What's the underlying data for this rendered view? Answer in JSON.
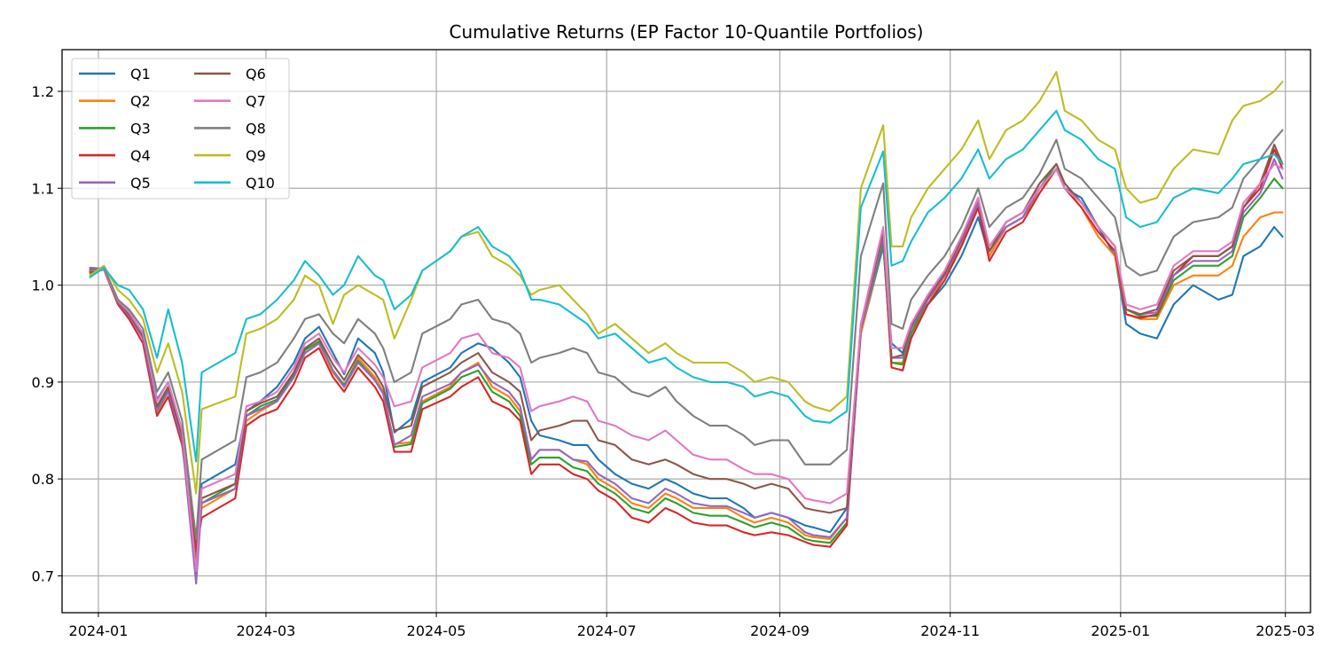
{
  "chart_data": {
    "type": "line",
    "title": "Cumulative Returns (EP Factor 10-Quantile Portfolios)",
    "xlabel": "",
    "ylabel": "",
    "xlim": [
      "2023-12-19",
      "2025-03-10"
    ],
    "ylim": [
      0.662,
      1.243
    ],
    "x_ticks": [
      "2024-01-01",
      "2024-03-01",
      "2024-05-01",
      "2024-07-01",
      "2024-09-01",
      "2024-11-01",
      "2025-01-01",
      "2025-03-01"
    ],
    "x_tick_labels": [
      "2024-01",
      "2024-03",
      "2024-05",
      "2024-07",
      "2024-09",
      "2024-11",
      "2025-01",
      "2025-03"
    ],
    "y_ticks": [
      0.7,
      0.8,
      0.9,
      1.0,
      1.1,
      1.2
    ],
    "y_tick_labels": [
      "0.7",
      "0.8",
      "0.9",
      "1.0",
      "1.1",
      "1.2"
    ],
    "grid": true,
    "legend": {
      "placement": "top-left",
      "columns": 2
    },
    "x": [
      "2023-12-29",
      "2024-01-03",
      "2024-01-08",
      "2024-01-12",
      "2024-01-17",
      "2024-01-22",
      "2024-01-26",
      "2024-01-31",
      "2024-02-05",
      "2024-02-07",
      "2024-02-19",
      "2024-02-23",
      "2024-02-28",
      "2024-03-05",
      "2024-03-11",
      "2024-03-15",
      "2024-03-20",
      "2024-03-25",
      "2024-03-29",
      "2024-04-03",
      "2024-04-09",
      "2024-04-12",
      "2024-04-16",
      "2024-04-22",
      "2024-04-26",
      "2024-05-06",
      "2024-05-10",
      "2024-05-16",
      "2024-05-21",
      "2024-05-27",
      "2024-05-31",
      "2024-06-04",
      "2024-06-07",
      "2024-06-14",
      "2024-06-19",
      "2024-06-24",
      "2024-06-28",
      "2024-07-04",
      "2024-07-10",
      "2024-07-16",
      "2024-07-22",
      "2024-07-26",
      "2024-08-01",
      "2024-08-07",
      "2024-08-13",
      "2024-08-19",
      "2024-08-23",
      "2024-08-29",
      "2024-09-04",
      "2024-09-10",
      "2024-09-13",
      "2024-09-19",
      "2024-09-25",
      "2024-09-30",
      "2024-10-08",
      "2024-10-11",
      "2024-10-15",
      "2024-10-18",
      "2024-10-24",
      "2024-10-30",
      "2024-11-05",
      "2024-11-11",
      "2024-11-15",
      "2024-11-21",
      "2024-11-27",
      "2024-12-03",
      "2024-12-09",
      "2024-12-12",
      "2024-12-18",
      "2024-12-24",
      "2024-12-30",
      "2025-01-03",
      "2025-01-08",
      "2025-01-14",
      "2025-01-20",
      "2025-01-27",
      "2025-02-05",
      "2025-02-10",
      "2025-02-14",
      "2025-02-20",
      "2025-02-25",
      "2025-02-28"
    ],
    "series": [
      {
        "name": "Q1",
        "color": "#1f77b4",
        "values": [
          1.015,
          1.018,
          0.985,
          0.972,
          0.95,
          0.882,
          0.9,
          0.85,
          0.73,
          0.795,
          0.815,
          0.87,
          0.88,
          0.895,
          0.92,
          0.945,
          0.957,
          0.93,
          0.908,
          0.945,
          0.93,
          0.91,
          0.848,
          0.862,
          0.9,
          0.915,
          0.93,
          0.94,
          0.935,
          0.92,
          0.905,
          0.86,
          0.845,
          0.84,
          0.835,
          0.835,
          0.82,
          0.805,
          0.795,
          0.79,
          0.8,
          0.795,
          0.785,
          0.78,
          0.78,
          0.77,
          0.76,
          0.765,
          0.76,
          0.752,
          0.75,
          0.745,
          0.77,
          0.95,
          1.04,
          0.94,
          0.93,
          0.96,
          0.98,
          1.0,
          1.03,
          1.07,
          1.03,
          1.06,
          1.07,
          1.1,
          1.12,
          1.1,
          1.09,
          1.06,
          1.03,
          0.96,
          0.95,
          0.945,
          0.98,
          1.0,
          0.985,
          0.99,
          1.03,
          1.04,
          1.06,
          1.05
        ]
      },
      {
        "name": "Q2",
        "color": "#ff7f0e",
        "values": [
          1.012,
          1.016,
          0.982,
          0.968,
          0.945,
          0.868,
          0.89,
          0.84,
          0.725,
          0.77,
          0.79,
          0.86,
          0.87,
          0.88,
          0.905,
          0.93,
          0.94,
          0.91,
          0.895,
          0.925,
          0.905,
          0.89,
          0.836,
          0.838,
          0.88,
          0.895,
          0.91,
          0.92,
          0.895,
          0.885,
          0.87,
          0.82,
          0.83,
          0.83,
          0.82,
          0.815,
          0.8,
          0.79,
          0.775,
          0.77,
          0.785,
          0.78,
          0.77,
          0.77,
          0.77,
          0.76,
          0.755,
          0.76,
          0.755,
          0.742,
          0.74,
          0.738,
          0.76,
          0.95,
          1.045,
          0.92,
          0.92,
          0.95,
          0.98,
          1.01,
          1.04,
          1.08,
          1.03,
          1.06,
          1.07,
          1.095,
          1.12,
          1.1,
          1.08,
          1.05,
          1.03,
          0.97,
          0.965,
          0.965,
          1.0,
          1.01,
          1.01,
          1.02,
          1.05,
          1.07,
          1.075,
          1.075
        ]
      },
      {
        "name": "Q3",
        "color": "#2ca02c",
        "values": [
          1.013,
          1.017,
          0.983,
          0.97,
          0.946,
          0.872,
          0.893,
          0.842,
          0.722,
          0.775,
          0.795,
          0.865,
          0.875,
          0.882,
          0.908,
          0.933,
          0.942,
          0.912,
          0.897,
          0.922,
          0.902,
          0.888,
          0.833,
          0.836,
          0.878,
          0.893,
          0.905,
          0.912,
          0.89,
          0.88,
          0.865,
          0.815,
          0.822,
          0.822,
          0.812,
          0.808,
          0.795,
          0.785,
          0.77,
          0.765,
          0.78,
          0.775,
          0.765,
          0.762,
          0.762,
          0.755,
          0.75,
          0.755,
          0.75,
          0.738,
          0.736,
          0.734,
          0.755,
          0.955,
          1.045,
          0.92,
          0.918,
          0.95,
          0.985,
          1.01,
          1.045,
          1.085,
          1.035,
          1.065,
          1.075,
          1.1,
          1.125,
          1.105,
          1.085,
          1.06,
          1.04,
          0.975,
          0.968,
          0.968,
          1.005,
          1.02,
          1.02,
          1.03,
          1.07,
          1.09,
          1.11,
          1.1
        ]
      },
      {
        "name": "Q4",
        "color": "#d62728",
        "values": [
          1.014,
          1.016,
          0.98,
          0.965,
          0.94,
          0.865,
          0.885,
          0.835,
          0.725,
          0.76,
          0.78,
          0.855,
          0.865,
          0.872,
          0.898,
          0.925,
          0.935,
          0.905,
          0.89,
          0.915,
          0.895,
          0.88,
          0.828,
          0.828,
          0.872,
          0.885,
          0.895,
          0.905,
          0.88,
          0.872,
          0.86,
          0.805,
          0.815,
          0.815,
          0.805,
          0.8,
          0.788,
          0.778,
          0.76,
          0.755,
          0.77,
          0.765,
          0.755,
          0.752,
          0.752,
          0.745,
          0.742,
          0.745,
          0.742,
          0.735,
          0.732,
          0.73,
          0.752,
          0.955,
          1.05,
          0.915,
          0.912,
          0.945,
          0.98,
          1.005,
          1.04,
          1.08,
          1.025,
          1.055,
          1.065,
          1.095,
          1.12,
          1.1,
          1.08,
          1.055,
          1.035,
          0.97,
          0.966,
          0.97,
          1.01,
          1.03,
          1.03,
          1.04,
          1.08,
          1.1,
          1.14,
          1.12
        ]
      },
      {
        "name": "Q5",
        "color": "#9467bd",
        "values": [
          1.018,
          1.017,
          0.982,
          0.968,
          0.945,
          0.87,
          0.89,
          0.84,
          0.692,
          0.775,
          0.79,
          0.865,
          0.872,
          0.88,
          0.905,
          0.93,
          0.94,
          0.912,
          0.895,
          0.92,
          0.902,
          0.888,
          0.835,
          0.845,
          0.885,
          0.898,
          0.91,
          0.918,
          0.9,
          0.89,
          0.875,
          0.82,
          0.83,
          0.83,
          0.82,
          0.818,
          0.805,
          0.795,
          0.78,
          0.775,
          0.79,
          0.785,
          0.775,
          0.772,
          0.772,
          0.765,
          0.76,
          0.765,
          0.76,
          0.745,
          0.742,
          0.74,
          0.76,
          0.955,
          1.05,
          0.925,
          0.925,
          0.955,
          0.985,
          1.01,
          1.045,
          1.085,
          1.035,
          1.06,
          1.07,
          1.1,
          1.12,
          1.1,
          1.085,
          1.06,
          1.04,
          0.975,
          0.97,
          0.972,
          1.01,
          1.025,
          1.025,
          1.035,
          1.075,
          1.095,
          1.13,
          1.11
        ]
      },
      {
        "name": "Q6",
        "color": "#8c564b",
        "values": [
          1.016,
          1.017,
          0.983,
          0.97,
          0.948,
          0.875,
          0.895,
          0.845,
          0.715,
          0.78,
          0.795,
          0.87,
          0.878,
          0.885,
          0.91,
          0.935,
          0.945,
          0.918,
          0.902,
          0.928,
          0.91,
          0.895,
          0.85,
          0.855,
          0.895,
          0.91,
          0.92,
          0.93,
          0.91,
          0.9,
          0.89,
          0.84,
          0.85,
          0.855,
          0.86,
          0.86,
          0.84,
          0.835,
          0.82,
          0.815,
          0.82,
          0.815,
          0.805,
          0.8,
          0.8,
          0.795,
          0.79,
          0.795,
          0.79,
          0.77,
          0.768,
          0.765,
          0.77,
          0.96,
          1.055,
          0.925,
          0.928,
          0.958,
          0.988,
          1.012,
          1.048,
          1.09,
          1.035,
          1.065,
          1.075,
          1.105,
          1.125,
          1.105,
          1.085,
          1.06,
          1.04,
          0.975,
          0.97,
          0.975,
          1.015,
          1.03,
          1.03,
          1.04,
          1.08,
          1.105,
          1.145,
          1.125
        ]
      },
      {
        "name": "Q7",
        "color": "#e377c2",
        "values": [
          1.015,
          1.016,
          0.984,
          0.972,
          0.95,
          0.88,
          0.9,
          0.85,
          0.705,
          0.79,
          0.805,
          0.875,
          0.88,
          0.89,
          0.915,
          0.94,
          0.95,
          0.925,
          0.91,
          0.935,
          0.918,
          0.905,
          0.875,
          0.88,
          0.915,
          0.93,
          0.945,
          0.95,
          0.93,
          0.925,
          0.915,
          0.87,
          0.875,
          0.88,
          0.885,
          0.88,
          0.86,
          0.855,
          0.845,
          0.84,
          0.85,
          0.84,
          0.825,
          0.82,
          0.82,
          0.81,
          0.805,
          0.805,
          0.8,
          0.78,
          0.778,
          0.775,
          0.785,
          0.96,
          1.06,
          0.935,
          0.935,
          0.96,
          0.99,
          1.015,
          1.05,
          1.09,
          1.04,
          1.065,
          1.075,
          1.1,
          1.12,
          1.1,
          1.085,
          1.06,
          1.04,
          0.98,
          0.975,
          0.98,
          1.02,
          1.035,
          1.035,
          1.045,
          1.085,
          1.105,
          1.125,
          1.12
        ]
      },
      {
        "name": "Q8",
        "color": "#7f7f7f",
        "values": [
          1.015,
          1.018,
          0.985,
          0.975,
          0.955,
          0.89,
          0.91,
          0.86,
          0.738,
          0.82,
          0.84,
          0.905,
          0.91,
          0.92,
          0.945,
          0.965,
          0.97,
          0.95,
          0.94,
          0.965,
          0.95,
          0.935,
          0.9,
          0.91,
          0.95,
          0.965,
          0.98,
          0.985,
          0.965,
          0.96,
          0.95,
          0.92,
          0.925,
          0.93,
          0.935,
          0.93,
          0.91,
          0.905,
          0.89,
          0.885,
          0.895,
          0.88,
          0.865,
          0.855,
          0.855,
          0.845,
          0.835,
          0.84,
          0.84,
          0.815,
          0.815,
          0.815,
          0.83,
          1.03,
          1.105,
          0.96,
          0.955,
          0.985,
          1.01,
          1.03,
          1.06,
          1.1,
          1.06,
          1.08,
          1.09,
          1.115,
          1.15,
          1.12,
          1.11,
          1.09,
          1.07,
          1.02,
          1.01,
          1.015,
          1.05,
          1.065,
          1.07,
          1.08,
          1.11,
          1.13,
          1.15,
          1.16
        ]
      },
      {
        "name": "Q9",
        "color": "#bcbd22",
        "values": [
          1.01,
          1.02,
          0.995,
          0.985,
          0.965,
          0.91,
          0.94,
          0.89,
          0.785,
          0.872,
          0.885,
          0.95,
          0.955,
          0.965,
          0.985,
          1.01,
          1.0,
          0.96,
          0.99,
          1.0,
          0.99,
          0.985,
          0.945,
          0.985,
          1.015,
          1.035,
          1.05,
          1.055,
          1.03,
          1.02,
          1.01,
          0.99,
          0.995,
          1.0,
          0.985,
          0.97,
          0.95,
          0.96,
          0.945,
          0.93,
          0.94,
          0.93,
          0.92,
          0.92,
          0.92,
          0.91,
          0.9,
          0.905,
          0.9,
          0.88,
          0.875,
          0.87,
          0.885,
          1.1,
          1.165,
          1.04,
          1.04,
          1.07,
          1.1,
          1.12,
          1.14,
          1.17,
          1.13,
          1.16,
          1.17,
          1.19,
          1.22,
          1.18,
          1.17,
          1.15,
          1.14,
          1.1,
          1.085,
          1.09,
          1.12,
          1.14,
          1.135,
          1.17,
          1.185,
          1.19,
          1.2,
          1.21
        ]
      },
      {
        "name": "Q10",
        "color": "#17becf",
        "values": [
          1.008,
          1.018,
          1.0,
          0.995,
          0.975,
          0.925,
          0.975,
          0.92,
          0.818,
          0.91,
          0.93,
          0.965,
          0.97,
          0.985,
          1.005,
          1.025,
          1.01,
          0.99,
          1.0,
          1.03,
          1.01,
          1.005,
          0.975,
          0.99,
          1.015,
          1.035,
          1.05,
          1.06,
          1.04,
          1.03,
          1.015,
          0.985,
          0.985,
          0.98,
          0.97,
          0.96,
          0.945,
          0.95,
          0.935,
          0.92,
          0.925,
          0.915,
          0.905,
          0.9,
          0.9,
          0.895,
          0.885,
          0.89,
          0.885,
          0.865,
          0.86,
          0.858,
          0.87,
          1.08,
          1.138,
          1.02,
          1.025,
          1.045,
          1.075,
          1.09,
          1.11,
          1.14,
          1.11,
          1.13,
          1.14,
          1.16,
          1.18,
          1.16,
          1.15,
          1.13,
          1.12,
          1.07,
          1.06,
          1.065,
          1.09,
          1.1,
          1.095,
          1.11,
          1.125,
          1.13,
          1.135,
          1.125
        ]
      }
    ]
  }
}
